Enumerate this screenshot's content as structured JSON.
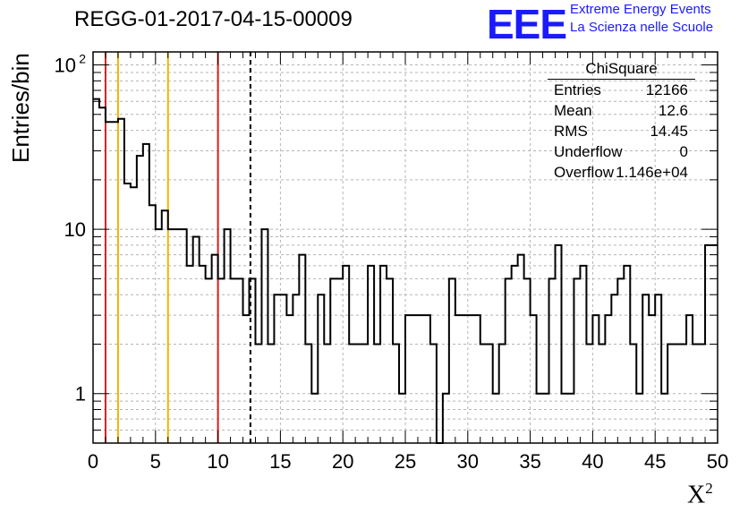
{
  "title": "REGG-01-2017-04-15-00009",
  "logo": {
    "mark": "EEE",
    "line1": "Extreme Energy Events",
    "line2": "La Scienza nelle Scuole",
    "color": "#1a1aff"
  },
  "stats_box": {
    "name": "ChiSquare",
    "rows": [
      {
        "label": "Entries",
        "value": "12166"
      },
      {
        "label": "Mean",
        "value": "12.6"
      },
      {
        "label": "RMS",
        "value": "14.45"
      },
      {
        "label": "Underflow",
        "value": "0"
      },
      {
        "label": "Overflow",
        "value": "1.146e+04"
      }
    ]
  },
  "chart_data": {
    "type": "histogram",
    "title": "REGG-01-2017-04-15-00009",
    "xlabel": "X",
    "xlabel_superscript": "2",
    "ylabel": "Entries/bin",
    "xlim": [
      0,
      50
    ],
    "ylim": [
      0.5,
      120
    ],
    "y_scale": "log",
    "grid": true,
    "x_ticks": [
      "0",
      "5",
      "10",
      "15",
      "20",
      "25",
      "30",
      "35",
      "40",
      "45",
      "50"
    ],
    "y_ticks": [
      "1",
      "10",
      "10"
    ],
    "y_tick_exponent": "2",
    "bin_width": 0.5,
    "x_start": 0,
    "values": [
      62,
      55,
      45,
      45,
      47,
      19,
      18,
      28,
      33,
      14,
      10,
      13,
      10,
      10,
      10,
      6,
      9,
      6,
      5,
      7,
      5,
      10,
      5,
      5,
      3,
      5,
      2,
      10,
      2,
      4,
      4,
      3,
      4,
      7,
      2,
      1,
      4,
      2,
      5,
      5,
      6,
      2,
      2,
      2,
      6,
      2,
      6,
      5,
      2,
      1,
      3,
      3,
      3,
      3,
      2,
      0,
      1,
      5,
      3,
      3,
      3,
      3,
      2,
      2,
      1,
      2,
      5,
      6,
      7,
      5,
      3,
      1,
      1,
      5,
      8,
      1,
      1,
      5,
      6,
      2,
      3,
      2,
      3,
      4,
      5,
      6,
      2,
      1,
      4,
      3,
      4,
      1,
      2,
      2,
      2,
      3,
      2,
      2,
      8
    ],
    "vertical_lines": [
      {
        "x": 1,
        "color": "#d62020",
        "style": "solid"
      },
      {
        "x": 2,
        "color": "#f0b400",
        "style": "solid"
      },
      {
        "x": 6,
        "color": "#f0b400",
        "style": "solid"
      },
      {
        "x": 10,
        "color": "#d62020",
        "style": "solid"
      },
      {
        "x": 12.6,
        "color": "#000000",
        "style": "dashed"
      }
    ]
  }
}
